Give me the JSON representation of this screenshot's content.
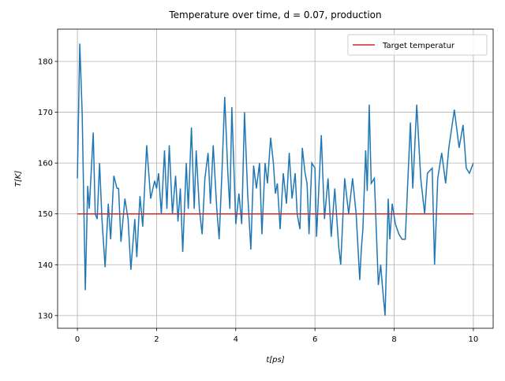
{
  "chart_data": {
    "type": "line",
    "title": "Temperature over time, d = 0.07, production",
    "x_label": "t[ps]",
    "y_label": "T[K]",
    "xlim": [
      -0.5,
      10.5
    ],
    "ylim": [
      127.5,
      186.35
    ],
    "xticks": [
      0,
      2,
      4,
      6,
      8,
      10
    ],
    "yticks": [
      130,
      140,
      150,
      160,
      170,
      180
    ],
    "grid": true,
    "legend": "upper right",
    "series": [
      {
        "color": "#1f77b4",
        "x": [
          0,
          0.06,
          0.12,
          0.2,
          0.26,
          0.3,
          0.4,
          0.45,
          0.5,
          0.56,
          0.62,
          0.7,
          0.78,
          0.84,
          0.92,
          1.0,
          1.04,
          1.1,
          1.2,
          1.28,
          1.35,
          1.45,
          1.5,
          1.58,
          1.65,
          1.75,
          1.85,
          1.95,
          2.0,
          2.05,
          2.12,
          2.2,
          2.26,
          2.32,
          2.4,
          2.48,
          2.54,
          2.6,
          2.66,
          2.75,
          2.8,
          2.88,
          2.95,
          3.0,
          3.08,
          3.15,
          3.22,
          3.3,
          3.36,
          3.43,
          3.52,
          3.58,
          3.65,
          3.72,
          3.8,
          3.85,
          3.9,
          4.0,
          4.08,
          4.15,
          4.22,
          4.3,
          4.38,
          4.45,
          4.52,
          4.6,
          4.66,
          4.74,
          4.8,
          4.88,
          4.95,
          5.0,
          5.05,
          5.12,
          5.2,
          5.28,
          5.35,
          5.42,
          5.5,
          5.55,
          5.62,
          5.68,
          5.75,
          5.8,
          5.85,
          5.92,
          6.0,
          6.04,
          6.16,
          6.24,
          6.33,
          6.41,
          6.5,
          6.6,
          6.65,
          6.75,
          6.85,
          6.95,
          7.04,
          7.13,
          7.17,
          7.21,
          7.28,
          7.32,
          7.37,
          7.42,
          7.5,
          7.6,
          7.66,
          7.7,
          7.77,
          7.85,
          7.89,
          7.95,
          8.03,
          8.12,
          8.2,
          8.28,
          8.41,
          8.47,
          8.57,
          8.67,
          8.77,
          8.84,
          8.96,
          9.02,
          9.1,
          9.2,
          9.3,
          9.38,
          9.52,
          9.64,
          9.74,
          9.82,
          9.9,
          10
        ],
        "values": [
          157,
          183.5,
          170,
          135,
          155.5,
          151,
          166,
          150,
          149,
          160,
          149,
          139.5,
          152,
          145,
          157.5,
          155,
          155,
          144.5,
          153,
          149,
          139,
          149,
          141.5,
          153.5,
          147.5,
          163.5,
          153,
          156.5,
          155,
          158,
          150,
          162.5,
          151,
          163.5,
          150,
          157.5,
          148.5,
          155,
          142.5,
          160,
          151,
          167,
          151,
          162.5,
          151,
          146,
          157,
          162,
          152,
          163.5,
          151,
          145,
          158,
          173,
          158,
          151,
          171,
          148,
          154,
          148,
          170,
          154,
          143,
          159.5,
          155,
          160,
          146,
          160,
          156,
          165,
          160,
          154,
          156,
          147,
          158,
          152,
          162,
          153,
          158,
          150,
          147,
          163,
          158,
          156,
          146,
          160,
          159,
          145.5,
          165.5,
          149,
          157,
          145.5,
          155,
          143.5,
          140,
          157,
          150,
          157,
          150,
          137,
          143,
          147,
          162.5,
          154.5,
          171.5,
          156,
          157,
          136,
          140,
          136,
          130,
          153,
          145,
          152,
          148,
          146,
          145,
          145,
          168,
          155,
          171.5,
          157,
          150,
          158,
          159,
          140,
          157,
          162,
          156,
          163,
          170.5,
          163,
          167.5,
          159,
          158,
          160
        ]
      },
      {
        "name": "Target temperatur",
        "color": "#d62728",
        "x": [
          0,
          10
        ],
        "values": [
          150,
          150
        ]
      }
    ]
  }
}
